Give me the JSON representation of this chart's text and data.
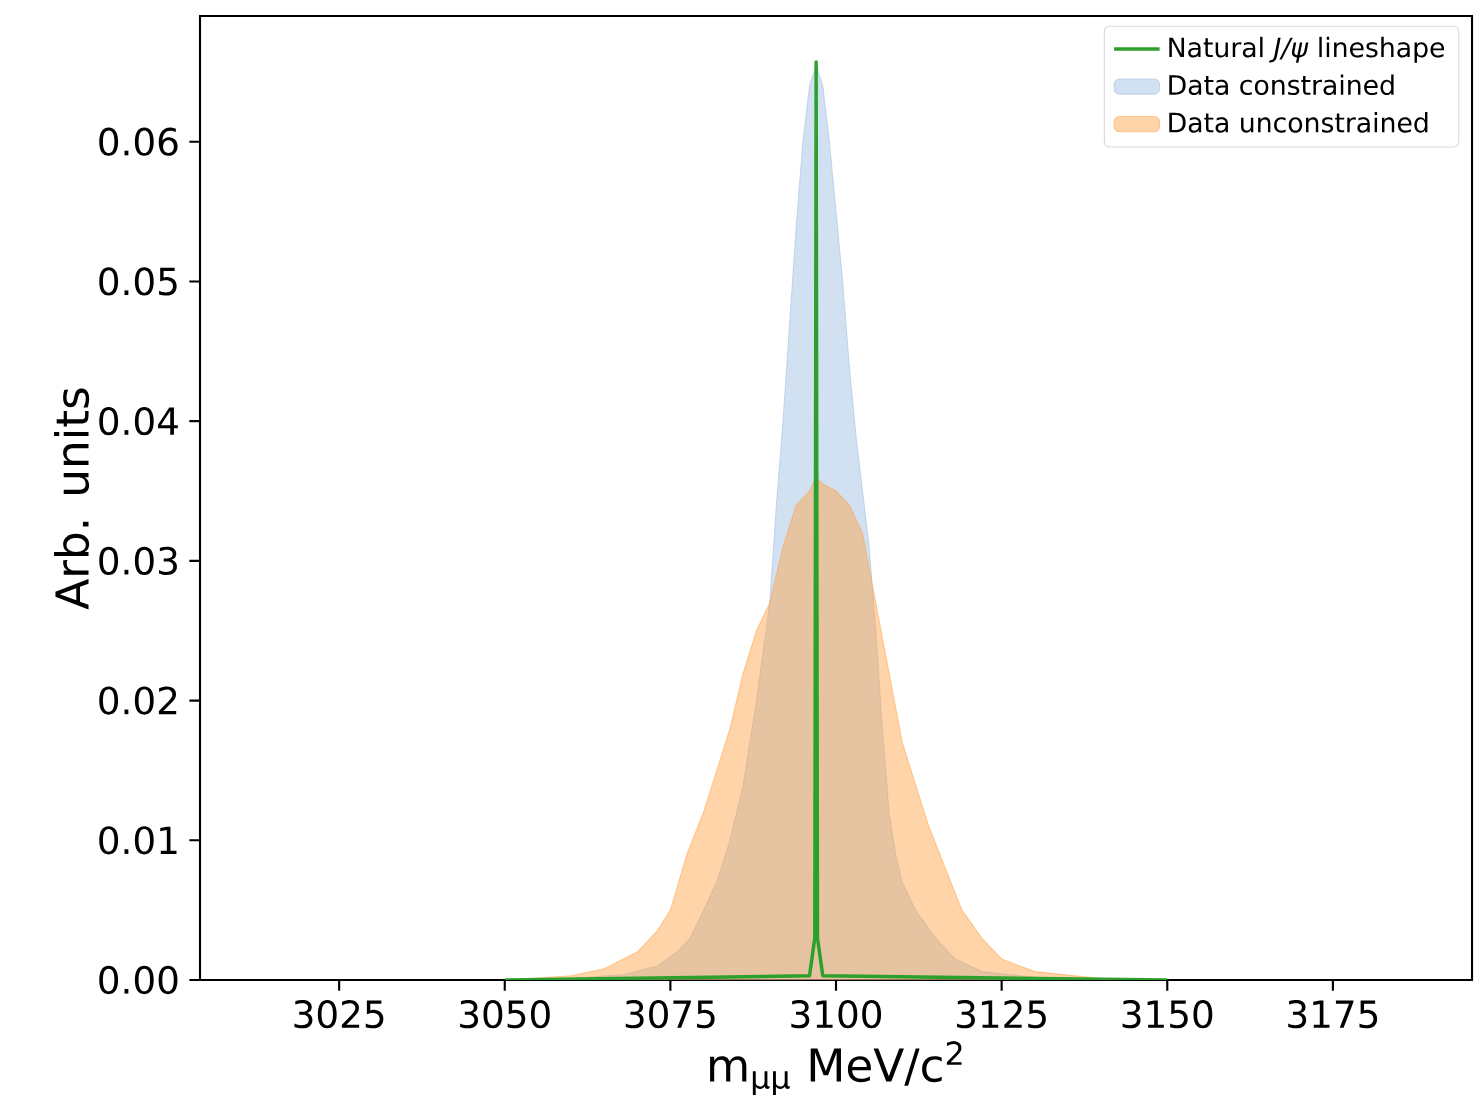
{
  "chart_data": {
    "type": "area",
    "xlabel": "m$_{μμ}$ MeV/c$^{2}$",
    "ylabel": "Arb. units",
    "xlim": [
      3004,
      3196
    ],
    "ylim": [
      0,
      0.069
    ],
    "xticks": [
      3025,
      3050,
      3075,
      3100,
      3125,
      3150,
      3175
    ],
    "yticks": [
      {
        "value": 0,
        "label": "0.00"
      },
      {
        "value": 0.01,
        "label": "0.01"
      },
      {
        "value": 0.02,
        "label": "0.02"
      },
      {
        "value": 0.03,
        "label": "0.03"
      },
      {
        "value": 0.04,
        "label": "0.04"
      },
      {
        "value": 0.05,
        "label": "0.05"
      },
      {
        "value": 0.06,
        "label": "0.06"
      }
    ],
    "legend": "top right",
    "grid": false,
    "series": [
      {
        "name": "Natural *J/ψ* lineshape",
        "type": "line",
        "color": "#2ca02c",
        "x": [
          3050,
          3096,
          3096.8,
          3097,
          3097.2,
          3098,
          3150
        ],
        "values": [
          0,
          0.0003,
          0.003,
          0.0657,
          0.003,
          0.0003,
          0
        ]
      },
      {
        "name": "Data constrained",
        "color": "#9bbce0",
        "x": [
          3050,
          3060,
          3068,
          3073,
          3076,
          3078,
          3080,
          3082,
          3084,
          3086,
          3088,
          3090,
          3091,
          3092,
          3093,
          3094,
          3095,
          3096,
          3097,
          3098,
          3099,
          3100,
          3101,
          3102,
          3103,
          3104,
          3105,
          3106,
          3107,
          3108,
          3109,
          3110,
          3112,
          3115,
          3118,
          3122,
          3130,
          3140
        ],
        "values": [
          0,
          0.0001,
          0.0004,
          0.001,
          0.002,
          0.003,
          0.005,
          0.007,
          0.01,
          0.014,
          0.02,
          0.027,
          0.034,
          0.04,
          0.047,
          0.054,
          0.06,
          0.064,
          0.0655,
          0.064,
          0.06,
          0.055,
          0.05,
          0.044,
          0.039,
          0.035,
          0.031,
          0.025,
          0.018,
          0.012,
          0.009,
          0.007,
          0.005,
          0.003,
          0.0015,
          0.0006,
          0.0002,
          0
        ]
      },
      {
        "name": "Data unconstrained",
        "color": "#ff9f40",
        "x": [
          3050,
          3060,
          3065,
          3070,
          3073,
          3075,
          3077.5,
          3080,
          3082,
          3084,
          3086,
          3088,
          3090,
          3092,
          3094,
          3096,
          3097,
          3098,
          3100,
          3102,
          3104,
          3106,
          3108,
          3110,
          3112,
          3114,
          3116.5,
          3119,
          3122,
          3125,
          3130,
          3140,
          3150
        ],
        "values": [
          0,
          0.0003,
          0.0008,
          0.002,
          0.0035,
          0.005,
          0.009,
          0.012,
          0.015,
          0.018,
          0.022,
          0.025,
          0.027,
          0.031,
          0.034,
          0.035,
          0.036,
          0.0355,
          0.035,
          0.034,
          0.032,
          0.027,
          0.022,
          0.017,
          0.014,
          0.011,
          0.008,
          0.005,
          0.003,
          0.0015,
          0.0006,
          0.0001,
          0
        ]
      }
    ]
  }
}
